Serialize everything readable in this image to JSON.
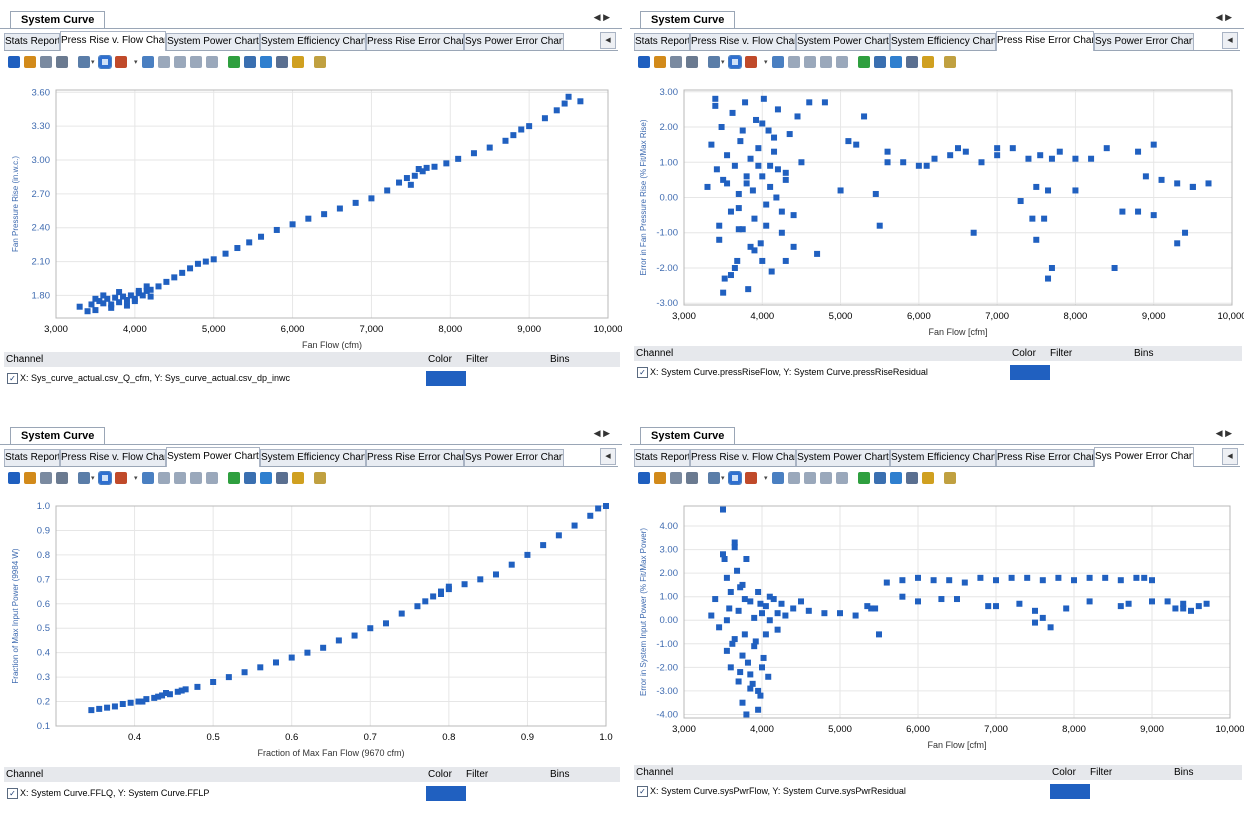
{
  "window": {
    "doc_tab": "System Curve",
    "doc_arrows": "◀ ▶",
    "tabs": [
      "Stats Report",
      "Press Rise v. Flow Chart",
      "System Power Chart",
      "System Efficiency Chart",
      "Press Rise Error Chart",
      "Sys Power Error Chart"
    ],
    "tab_scroll": "◀",
    "legend_headers": {
      "channel": "Channel",
      "color": "Color",
      "filter": "Filter",
      "bins": "Bins"
    },
    "check_mark": "✓"
  },
  "colors": {
    "accent": "#2060c0",
    "axis_text": "#3f6bb0",
    "grid": "#e6e6e6",
    "border": "#9aa6b6"
  },
  "panels": [
    {
      "active_tab": 1,
      "channel": "X: Sys_curve_actual.csv_Q_cfm, Y: Sys_curve_actual.csv_dp_inwc",
      "swatch_color": "#2060c0"
    },
    {
      "active_tab": 4,
      "channel": "X: System Curve.pressRiseFlow, Y: System Curve.pressRiseResidual",
      "swatch_color": "#2060c0"
    },
    {
      "active_tab": 2,
      "channel": "X: System Curve.FFLQ, Y: System Curve.FFLP",
      "swatch_color": "#2060c0"
    },
    {
      "active_tab": 5,
      "channel": "X: System Curve.sysPwrFlow, Y: System Curve.sysPwrResidual",
      "swatch_color": "#2060c0"
    }
  ],
  "toolbar_icons": [
    "save-icon",
    "open-icon",
    "copy-icon",
    "print-icon",
    "grid-icon",
    "select-icon",
    "paint-icon",
    "3d-icon",
    "move-icon",
    "pan-icon",
    "rotate-icon",
    "reset-icon",
    "chart-icon",
    "abc-icon",
    "table-icon",
    "list-icon",
    "zoom-icon",
    "wand-icon"
  ],
  "chart_data": [
    {
      "type": "scatter",
      "title": "",
      "xlabel": "Fan Flow (cfm)",
      "ylabel": "Fan Pressure Rise (in.w.c.)",
      "xlim": [
        3000,
        10000
      ],
      "ylim": [
        1.6,
        3.62
      ],
      "xticks": [
        3000,
        4000,
        5000,
        6000,
        7000,
        8000,
        9000,
        10000
      ],
      "xtick_labels": [
        "3,000",
        "4,000",
        "5,000",
        "6,000",
        "7,000",
        "8,000",
        "9,000",
        "10,000"
      ],
      "yticks": [
        1.8,
        2.1,
        2.4,
        2.7,
        3.0,
        3.3,
        3.6
      ],
      "ytick_labels": [
        "1.80",
        "2.10",
        "2.40",
        "2.70",
        "3.00",
        "3.30",
        "3.60"
      ],
      "grid": true,
      "series": [
        {
          "color": "#2060c0",
          "x": [
            3300,
            3400,
            3450,
            3500,
            3550,
            3600,
            3650,
            3700,
            3750,
            3800,
            3850,
            3900,
            3950,
            4000,
            4050,
            4100,
            4150,
            4200,
            4300,
            4400,
            4500,
            4600,
            4700,
            4800,
            4900,
            5000,
            5150,
            5300,
            5450,
            5600,
            5800,
            6000,
            6200,
            6400,
            6600,
            6800,
            7000,
            7200,
            7350,
            7450,
            7550,
            7650,
            7700,
            7800,
            7950,
            8100,
            8300,
            8500,
            8700,
            8800,
            8900,
            9000,
            9200,
            9350,
            9450,
            9500,
            9650,
            3500,
            3700,
            3900,
            4050,
            4200,
            3600,
            3800,
            4000,
            4150,
            7500,
            7600
          ],
          "y": [
            1.7,
            1.66,
            1.72,
            1.67,
            1.75,
            1.73,
            1.77,
            1.72,
            1.78,
            1.74,
            1.79,
            1.76,
            1.8,
            1.77,
            1.82,
            1.8,
            1.84,
            1.85,
            1.88,
            1.92,
            1.96,
            2.0,
            2.04,
            2.08,
            2.1,
            2.12,
            2.17,
            2.22,
            2.27,
            2.32,
            2.38,
            2.43,
            2.48,
            2.52,
            2.57,
            2.62,
            2.66,
            2.73,
            2.8,
            2.84,
            2.86,
            2.9,
            2.93,
            2.94,
            2.97,
            3.01,
            3.06,
            3.11,
            3.17,
            3.22,
            3.27,
            3.3,
            3.37,
            3.44,
            3.5,
            3.56,
            3.52,
            1.77,
            1.69,
            1.71,
            1.84,
            1.79,
            1.8,
            1.83,
            1.75,
            1.88,
            2.78,
            2.92
          ]
        }
      ]
    },
    {
      "type": "scatter",
      "title": "",
      "xlabel": "Fan Flow [cfm]",
      "ylabel": "Error in Fan Pressure Rise (% Fit/Max Rise)",
      "xlim": [
        3000,
        10000
      ],
      "ylim": [
        -3.05,
        3.05
      ],
      "xticks": [
        3000,
        4000,
        5000,
        6000,
        7000,
        8000,
        9000,
        10000
      ],
      "xtick_labels": [
        "3,000",
        "4,000",
        "5,000",
        "6,000",
        "7,000",
        "8,000",
        "9,000",
        "10,000"
      ],
      "yticks": [
        -3,
        -2,
        -1,
        0,
        1,
        2,
        3
      ],
      "ytick_labels": [
        "-3.00",
        "-2.00",
        "-1.00",
        "0.00",
        "1.00",
        "2.00",
        "3.00"
      ],
      "grid": true,
      "series": [
        {
          "color": "#2060c0",
          "x": [
            3300,
            3350,
            3400,
            3420,
            3450,
            3480,
            3500,
            3520,
            3550,
            3600,
            3620,
            3650,
            3680,
            3700,
            3720,
            3750,
            3780,
            3800,
            3820,
            3850,
            3880,
            3900,
            3920,
            3950,
            3980,
            4000,
            4020,
            4050,
            4080,
            4100,
            4120,
            4150,
            4180,
            4200,
            4250,
            4300,
            4350,
            4400,
            4450,
            4500,
            4600,
            4700,
            4800,
            5000,
            5200,
            5300,
            5450,
            5600,
            5800,
            6000,
            6200,
            6400,
            6600,
            6800,
            7000,
            7200,
            7400,
            7500,
            7550,
            7600,
            7650,
            7700,
            7800,
            8000,
            8200,
            8400,
            8600,
            8800,
            8900,
            9000,
            9100,
            9300,
            9500,
            9700,
            3450,
            3550,
            3650,
            3750,
            3850,
            3950,
            4050,
            4150,
            4250,
            3500,
            3700,
            3900,
            4100,
            4300,
            5100,
            5600,
            6100,
            6500,
            6700,
            7000,
            7300,
            7500,
            7700,
            8000,
            8500,
            9000,
            9300,
            9500,
            3600,
            3800,
            4000,
            4200,
            4400,
            3400,
            3700,
            4000,
            4300,
            5500,
            7450,
            7650,
            8800,
            9400
          ],
          "y": [
            0.3,
            1.5,
            2.6,
            0.8,
            -1.2,
            2.0,
            0.5,
            -2.3,
            1.2,
            -0.4,
            2.4,
            0.9,
            -1.8,
            0.1,
            1.6,
            -0.9,
            2.7,
            0.4,
            -2.6,
            1.1,
            0.2,
            -0.6,
            2.2,
            1.4,
            -1.3,
            0.6,
            2.8,
            -0.2,
            1.9,
            0.9,
            -2.1,
            1.3,
            0.0,
            2.5,
            -1.0,
            0.7,
            1.8,
            -0.5,
            2.3,
            1.0,
            2.7,
            -1.6,
            2.7,
            0.2,
            1.5,
            2.3,
            0.1,
            1.3,
            1.0,
            0.9,
            1.1,
            1.2,
            1.3,
            1.0,
            1.2,
            1.4,
            1.1,
            0.3,
            1.2,
            -0.6,
            0.2,
            1.1,
            1.3,
            0.2,
            1.1,
            1.4,
            -0.4,
            1.3,
            0.6,
            1.5,
            0.5,
            0.4,
            0.3,
            0.4,
            -0.8,
            0.4,
            -2.0,
            1.9,
            -1.4,
            0.9,
            -0.8,
            1.7,
            -0.4,
            -2.7,
            -0.3,
            -1.5,
            0.3,
            -1.8,
            1.6,
            1.0,
            0.9,
            1.4,
            -1.0,
            1.4,
            -0.1,
            -1.2,
            -2.0,
            1.1,
            -2.0,
            -0.5,
            -1.3,
            0.3,
            -2.2,
            0.6,
            -1.8,
            0.8,
            -1.4,
            2.8,
            -0.9,
            2.1,
            0.5,
            -0.8,
            -0.6,
            -2.3,
            -0.4,
            -1.0
          ]
        }
      ]
    },
    {
      "type": "scatter",
      "title": "",
      "xlabel": "Fraction of Max Fan Flow (9670 cfm)",
      "ylabel": "Fraction of Max Input Power (9984 W)",
      "xlim": [
        0.3,
        1.0
      ],
      "ylim": [
        0.1,
        1.0
      ],
      "xticks": [
        0.4,
        0.5,
        0.6,
        0.7,
        0.8,
        0.9,
        1.0
      ],
      "xtick_labels": [
        "0.4",
        "0.5",
        "0.6",
        "0.7",
        "0.8",
        "0.9",
        "1.0"
      ],
      "yticks": [
        0.1,
        0.2,
        0.3,
        0.4,
        0.5,
        0.6,
        0.7,
        0.8,
        0.9,
        1.0
      ],
      "ytick_labels": [
        "0.1",
        "0.2",
        "0.3",
        "0.4",
        "0.5",
        "0.6",
        "0.7",
        "0.8",
        "0.9",
        "1.0"
      ],
      "grid": true,
      "series": [
        {
          "color": "#2060c0",
          "x": [
            0.345,
            0.355,
            0.365,
            0.375,
            0.385,
            0.395,
            0.405,
            0.415,
            0.425,
            0.435,
            0.445,
            0.455,
            0.465,
            0.48,
            0.5,
            0.52,
            0.54,
            0.56,
            0.58,
            0.6,
            0.62,
            0.64,
            0.66,
            0.68,
            0.7,
            0.72,
            0.74,
            0.76,
            0.77,
            0.78,
            0.79,
            0.8,
            0.82,
            0.84,
            0.86,
            0.88,
            0.9,
            0.92,
            0.94,
            0.96,
            0.98,
            0.99,
            1.0,
            0.41,
            0.43,
            0.44,
            0.46,
            0.79,
            0.8
          ],
          "y": [
            0.165,
            0.17,
            0.175,
            0.18,
            0.19,
            0.195,
            0.2,
            0.21,
            0.215,
            0.225,
            0.23,
            0.24,
            0.25,
            0.26,
            0.28,
            0.3,
            0.32,
            0.34,
            0.36,
            0.38,
            0.4,
            0.42,
            0.45,
            0.47,
            0.5,
            0.52,
            0.56,
            0.59,
            0.61,
            0.63,
            0.65,
            0.66,
            0.68,
            0.7,
            0.72,
            0.76,
            0.8,
            0.84,
            0.88,
            0.92,
            0.96,
            0.99,
            1.0,
            0.2,
            0.22,
            0.235,
            0.245,
            0.64,
            0.67
          ]
        }
      ]
    },
    {
      "type": "scatter",
      "title": "",
      "xlabel": "Fan Flow [cfm]",
      "ylabel": "Error in System Input Power (% Fit/Max Power)",
      "xlim": [
        3000,
        10000
      ],
      "ylim": [
        -4.15,
        4.85
      ],
      "xticks": [
        3000,
        4000,
        5000,
        6000,
        7000,
        8000,
        9000,
        10000
      ],
      "xtick_labels": [
        "3,000",
        "4,000",
        "5,000",
        "6,000",
        "7,000",
        "8,000",
        "9,000",
        "10,000"
      ],
      "yticks": [
        -4,
        -3,
        -2,
        -1,
        0,
        1,
        2,
        3,
        4
      ],
      "ytick_labels": [
        "-4.00",
        "-3.00",
        "-2.00",
        "-1.00",
        "0.00",
        "1.00",
        "2.00",
        "3.00",
        "4.00"
      ],
      "grid": true,
      "series": [
        {
          "color": "#2060c0",
          "x": [
            3350,
            3400,
            3450,
            3500,
            3520,
            3550,
            3580,
            3600,
            3620,
            3650,
            3680,
            3700,
            3720,
            3750,
            3780,
            3800,
            3820,
            3850,
            3880,
            3900,
            3920,
            3950,
            3980,
            4000,
            4020,
            4050,
            4080,
            4100,
            4150,
            4200,
            4250,
            4300,
            4400,
            4500,
            4600,
            4800,
            5000,
            5200,
            5350,
            5450,
            5600,
            5800,
            6000,
            6200,
            6400,
            6600,
            6800,
            7000,
            7200,
            7400,
            7600,
            7800,
            8000,
            8200,
            8400,
            8600,
            8800,
            8900,
            9000,
            9200,
            9400,
            9600,
            9700,
            5500,
            6000,
            6500,
            7000,
            7300,
            7500,
            7600,
            7700,
            8200,
            8600,
            9000,
            9300,
            9500,
            3500,
            3550,
            3600,
            3650,
            3700,
            3720,
            3750,
            3780,
            3800,
            3850,
            3900,
            3950,
            3980,
            4000,
            4050,
            3550,
            3650,
            3750,
            3850,
            3950,
            4100,
            4200,
            5400,
            5800,
            6300,
            6900,
            7500,
            7900,
            8700,
            9400
          ],
          "y": [
            0.2,
            0.9,
            -0.3,
            4.7,
            2.6,
            1.8,
            0.5,
            1.2,
            -1.0,
            3.3,
            2.1,
            0.4,
            -2.2,
            1.5,
            -0.6,
            2.6,
            -1.8,
            0.8,
            -2.7,
            0.1,
            -0.9,
            1.2,
            -3.2,
            0.3,
            -1.6,
            0.6,
            -2.4,
            0.0,
            0.9,
            -0.4,
            0.7,
            0.2,
            0.5,
            0.8,
            0.4,
            0.3,
            0.3,
            0.2,
            0.6,
            0.5,
            1.6,
            1.7,
            1.8,
            1.7,
            1.7,
            1.6,
            1.8,
            1.7,
            1.8,
            1.8,
            1.7,
            1.8,
            1.7,
            1.8,
            1.8,
            1.7,
            1.8,
            1.8,
            1.7,
            0.8,
            0.7,
            0.6,
            0.7,
            -0.6,
            0.8,
            0.9,
            0.6,
            0.7,
            0.4,
            0.1,
            -0.3,
            0.8,
            0.6,
            0.8,
            0.5,
            0.4,
            2.8,
            -1.3,
            -2.0,
            3.1,
            -2.6,
            1.4,
            -3.5,
            0.9,
            -4.0,
            -2.9,
            -1.1,
            -3.0,
            0.7,
            -2.0,
            -0.6,
            0.0,
            -0.8,
            -1.5,
            -2.3,
            -3.8,
            1.0,
            0.3,
            0.5,
            1.0,
            0.9,
            0.6,
            -0.1,
            0.5,
            0.7,
            0.5
          ]
        }
      ]
    }
  ]
}
